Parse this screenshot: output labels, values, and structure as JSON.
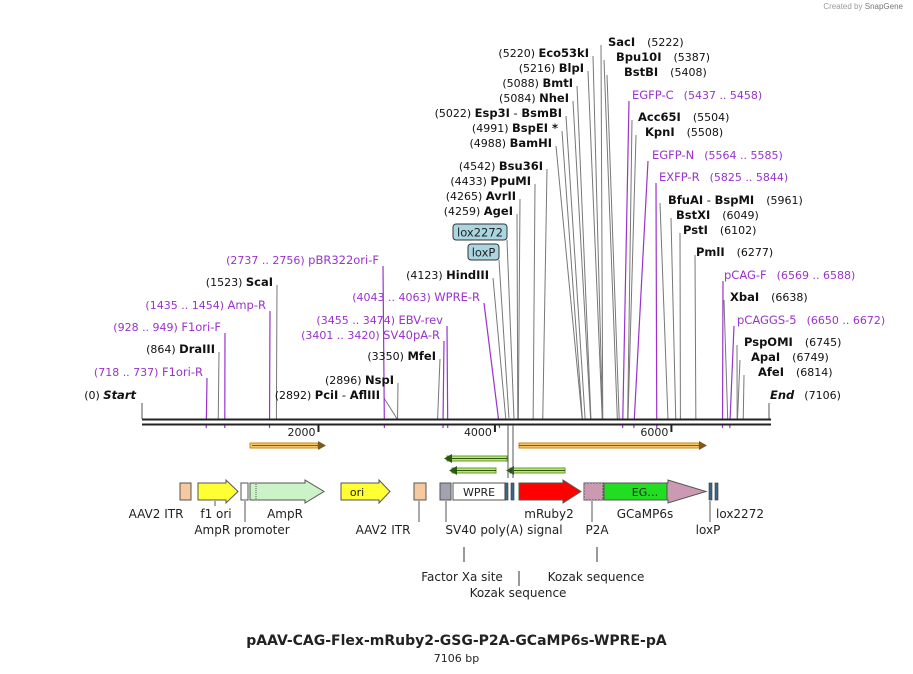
{
  "brand": {
    "prefix": "Created by",
    "name": "SnapGene"
  },
  "plasmid": {
    "name": "pAAV-CAG-Flex-mRuby2-GSG-P2A-GCaMP6s-WPRE-pA",
    "length_label": "7106 bp",
    "length": 7106
  },
  "colors": {
    "enzyme": "#111111",
    "primer": "#9933cc",
    "line": "#777777",
    "primer_line": "#9933cc"
  },
  "ticks": [
    {
      "pos": 2000,
      "label": "2000"
    },
    {
      "pos": 4000,
      "label": "4000"
    },
    {
      "pos": 6000,
      "label": "6000"
    }
  ],
  "start": {
    "num": "(0)",
    "name": "Start"
  },
  "end": {
    "num": "(7106)",
    "name": "End"
  },
  "enzymes": [
    {
      "name": "Eco53kI",
      "coord": "(5220)",
      "pos": 5220
    },
    {
      "name": "BlpI",
      "coord": "(5216)",
      "pos": 5216
    },
    {
      "name": "BmtI",
      "coord": "(5088)",
      "pos": 5088
    },
    {
      "name": "NheI",
      "coord": "(5084)",
      "pos": 5084
    },
    {
      "name": "Esp3I",
      "alt": "BsmBI",
      "coord": "(5022)",
      "pos": 5022
    },
    {
      "name": "BspEI *",
      "coord": "(4991)",
      "pos": 4991
    },
    {
      "name": "BamHI",
      "coord": "(4988)",
      "pos": 4988
    },
    {
      "name": "Bsu36I",
      "coord": "(4542)",
      "pos": 4542
    },
    {
      "name": "PpuMI",
      "coord": "(4433)",
      "pos": 4433
    },
    {
      "name": "AvrII",
      "coord": "(4265)",
      "pos": 4265
    },
    {
      "name": "AgeI",
      "coord": "(4259)",
      "pos": 4259
    },
    {
      "name": "HindIII",
      "coord": "(4123)",
      "pos": 4123
    },
    {
      "name": "ScaI",
      "coord": "(1523)",
      "pos": 1523
    },
    {
      "name": "DraIII",
      "coord": "(864)",
      "pos": 864
    },
    {
      "name": "MfeI",
      "coord": "(3350)",
      "pos": 3350
    },
    {
      "name": "NspI",
      "coord": "(2896)",
      "pos": 2896
    },
    {
      "name": "PciI",
      "alt": "AflIII",
      "coord": "(2892)",
      "pos": 2892
    },
    {
      "name": "SacI",
      "coord": "(5222)",
      "pos": 5222
    },
    {
      "name": "Bpu10I",
      "coord": "(5387)",
      "pos": 5387
    },
    {
      "name": "BstBI",
      "coord": "(5408)",
      "pos": 5408
    },
    {
      "name": "Acc65I",
      "coord": "(5504)",
      "pos": 5504
    },
    {
      "name": "KpnI",
      "coord": "(5508)",
      "pos": 5508
    },
    {
      "name": "BfuAI",
      "alt": "BspMI",
      "coord": "(5961)",
      "pos": 5961
    },
    {
      "name": "BstXI",
      "coord": "(6049)",
      "pos": 6049
    },
    {
      "name": "PstI",
      "coord": "(6102)",
      "pos": 6102
    },
    {
      "name": "PmlI",
      "coord": "(6277)",
      "pos": 6277
    },
    {
      "name": "XbaI",
      "coord": "(6638)",
      "pos": 6638
    },
    {
      "name": "PspOMI",
      "coord": "(6745)",
      "pos": 6745
    },
    {
      "name": "ApaI",
      "coord": "(6749)",
      "pos": 6749
    },
    {
      "name": "AfeI",
      "coord": "(6814)",
      "pos": 6814
    }
  ],
  "primers": [
    {
      "name": "pBR322ori-F",
      "range": "(2737 .. 2756)",
      "pos": 2747
    },
    {
      "name": "Amp-R",
      "range": "(1435 .. 1454)",
      "pos": 1445
    },
    {
      "name": "F1ori-F",
      "range": "(928 .. 949)",
      "pos": 938
    },
    {
      "name": "F1ori-R",
      "range": "(718 .. 737)",
      "pos": 728
    },
    {
      "name": "WPRE-R",
      "range": "(4043 .. 4063)",
      "pos": 4053
    },
    {
      "name": "EBV-rev",
      "range": "(3455 .. 3474)",
      "pos": 3465
    },
    {
      "name": "SV40pA-R",
      "range": "(3401 .. 3420)",
      "pos": 3411
    },
    {
      "name": "EGFP-C",
      "range": "(5437 .. 5458)",
      "pos": 5447
    },
    {
      "name": "EGFP-N",
      "range": "(5564 .. 5585)",
      "pos": 5574
    },
    {
      "name": "EXFP-R",
      "range": "(5825 .. 5844)",
      "pos": 5834
    },
    {
      "name": "pCAG-F",
      "range": "(6569 .. 6588)",
      "pos": 6579
    },
    {
      "name": "pCAGGS-5",
      "range": "(6650 .. 6672)",
      "pos": 6661
    }
  ],
  "boxed_features": [
    "lox2272",
    "loxP"
  ],
  "feature_labels": [
    "AAV2 ITR",
    "f1 ori",
    "AmpR promoter",
    "AmpR",
    "AAV2 ITR",
    "SV40 poly(A) signal",
    "mRuby2",
    "P2A",
    "GCaMP6s",
    "loxP",
    "lox2272",
    "Factor Xa site",
    "Kozak sequence",
    "Kozak sequence"
  ],
  "inner_labels": {
    "ori": "ori",
    "wpre": "WPRE",
    "egfp": "EG…"
  }
}
